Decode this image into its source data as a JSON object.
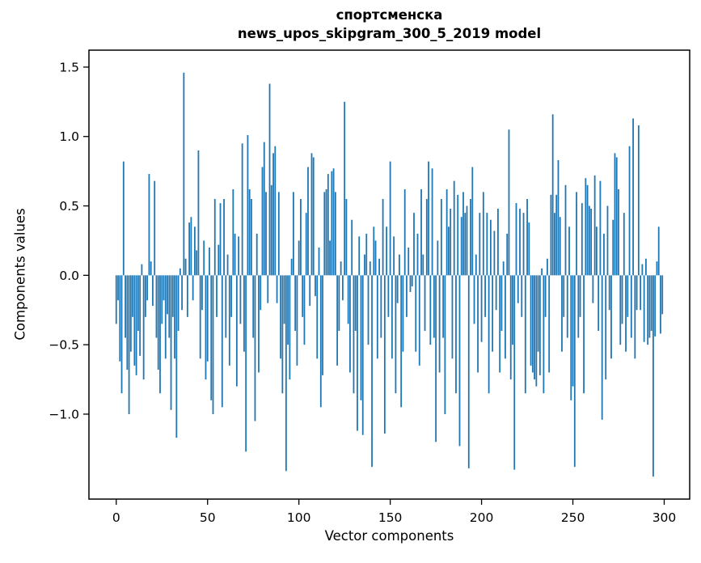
{
  "figure": {
    "title_line1": "спортсменска",
    "title_line2": "news_upos_skipgram_300_5_2019 model",
    "background_color": "#ffffff",
    "text_color": "#000000"
  },
  "chart_data": {
    "type": "bar",
    "title": "спортсменска",
    "subtitle": "news_upos_skipgram_300_5_2019 model",
    "xlabel": "Vector components",
    "ylabel": "Components values",
    "bar_color": "#1f77b4",
    "spine_color": "#000000",
    "grid": false,
    "legend": "none",
    "n_bars": 300,
    "x_start": 0,
    "xlim": [
      -14.95,
      313.95
    ],
    "ylim": [
      -1.612,
      1.622
    ],
    "x_ticks": [
      0,
      50,
      100,
      150,
      200,
      250,
      300
    ],
    "x_tick_labels": [
      "0",
      "50",
      "100",
      "150",
      "200",
      "250",
      "300"
    ],
    "y_ticks": [
      1.5,
      1.0,
      0.5,
      0.0,
      -0.5,
      -1.0
    ],
    "y_tick_labels": [
      "1.5",
      "1.0",
      "0.5",
      "0.0",
      "−0.5",
      "−1.0"
    ],
    "values": [
      -0.35,
      -0.18,
      -0.62,
      -0.85,
      0.82,
      -0.45,
      -0.68,
      -1.0,
      -0.55,
      -0.3,
      -0.65,
      -0.72,
      -0.4,
      -0.58,
      0.08,
      -0.75,
      -0.3,
      -0.18,
      0.73,
      0.1,
      -0.22,
      0.68,
      -0.45,
      -0.68,
      -0.85,
      -0.35,
      -0.18,
      -0.6,
      -0.28,
      -0.45,
      -0.97,
      -0.3,
      -0.6,
      -1.17,
      -0.4,
      0.05,
      -0.25,
      1.46,
      0.12,
      -0.3,
      0.38,
      0.42,
      -0.18,
      0.35,
      0.18,
      0.9,
      -0.6,
      -0.25,
      0.25,
      -0.75,
      -0.62,
      0.2,
      -0.9,
      -1.0,
      0.55,
      -0.3,
      0.22,
      0.52,
      -0.95,
      0.55,
      -0.45,
      0.15,
      -0.65,
      -0.3,
      0.62,
      0.3,
      -0.8,
      0.28,
      -0.35,
      0.95,
      -0.55,
      -1.27,
      1.01,
      0.62,
      0.55,
      -0.45,
      -1.05,
      0.3,
      -0.7,
      -0.25,
      0.78,
      0.96,
      0.6,
      -0.2,
      1.38,
      0.65,
      0.88,
      0.93,
      -0.2,
      0.6,
      -0.6,
      -0.85,
      -0.35,
      -1.41,
      -0.5,
      -0.75,
      0.12,
      0.6,
      -0.4,
      -0.65,
      0.25,
      0.55,
      -0.3,
      -0.5,
      0.45,
      0.78,
      -0.22,
      0.88,
      0.85,
      -0.15,
      -0.6,
      0.2,
      -0.95,
      -0.72,
      0.6,
      0.62,
      0.73,
      0.25,
      0.75,
      0.77,
      0.6,
      -0.65,
      -0.4,
      0.1,
      -0.18,
      1.25,
      0.55,
      -0.35,
      -0.7,
      0.4,
      -0.85,
      -0.4,
      -1.12,
      0.28,
      -0.9,
      -1.15,
      0.15,
      0.3,
      -0.5,
      0.1,
      -1.38,
      0.35,
      0.25,
      -0.6,
      0.12,
      -0.45,
      0.55,
      -1.14,
      0.35,
      -0.3,
      0.82,
      -0.6,
      0.28,
      -0.85,
      -0.2,
      0.15,
      -0.95,
      -0.55,
      0.62,
      -0.3,
      0.2,
      -0.12,
      -0.08,
      0.45,
      -0.55,
      0.3,
      -0.65,
      0.62,
      0.15,
      -0.4,
      0.55,
      0.82,
      -0.5,
      0.77,
      -0.45,
      -1.2,
      0.25,
      -0.7,
      0.55,
      -0.45,
      -1.0,
      0.62,
      0.35,
      0.48,
      -0.6,
      0.68,
      -0.85,
      0.58,
      -1.23,
      0.42,
      0.6,
      0.45,
      0.5,
      -1.39,
      0.55,
      0.78,
      -0.35,
      0.15,
      -0.7,
      0.45,
      -0.48,
      0.6,
      -0.3,
      0.45,
      -0.85,
      0.4,
      -0.55,
      0.32,
      -0.25,
      0.48,
      -0.7,
      -0.4,
      0.1,
      -0.6,
      0.3,
      1.05,
      -0.75,
      -0.5,
      -1.4,
      0.52,
      -0.2,
      0.48,
      -0.3,
      0.45,
      -0.85,
      0.55,
      0.38,
      -0.65,
      -0.7,
      -0.75,
      -0.8,
      -0.55,
      -0.72,
      0.05,
      -0.85,
      -0.3,
      0.12,
      -0.7,
      0.58,
      1.16,
      0.45,
      0.58,
      0.83,
      0.42,
      -0.55,
      -0.3,
      0.65,
      -0.45,
      0.35,
      -0.9,
      -0.8,
      -1.38,
      0.6,
      -0.45,
      -0.3,
      0.52,
      -0.85,
      0.7,
      0.65,
      0.5,
      0.48,
      -0.2,
      0.72,
      0.35,
      -0.4,
      0.68,
      -1.04,
      0.3,
      -0.75,
      0.5,
      -0.25,
      -0.6,
      0.4,
      0.88,
      0.85,
      0.62,
      -0.5,
      -0.35,
      0.45,
      -0.55,
      -0.3,
      0.93,
      -0.45,
      1.13,
      -0.6,
      -0.25,
      1.08,
      -0.25,
      0.08,
      -0.48,
      0.12,
      -0.5,
      -0.45,
      -0.4,
      -1.45,
      -0.44,
      0.1,
      0.35,
      -0.42,
      -0.28
    ]
  }
}
